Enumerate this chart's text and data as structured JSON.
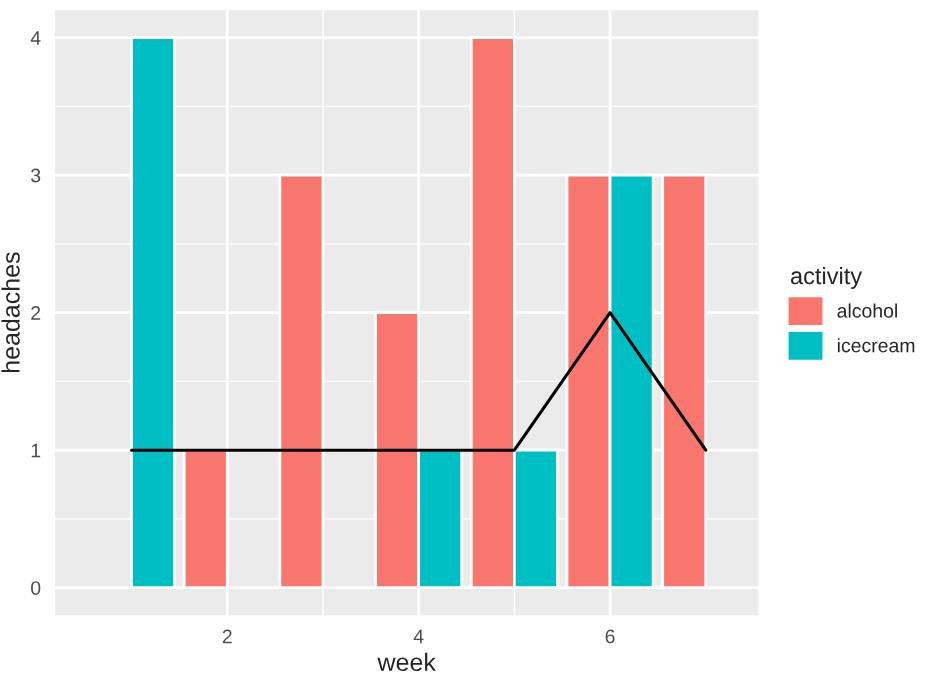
{
  "chart_data": {
    "type": "bar",
    "xlabel": "week",
    "ylabel": "headaches",
    "legend_title": "activity",
    "legend": "right",
    "grid": true,
    "x": [
      1,
      2,
      3,
      4,
      5,
      6,
      7
    ],
    "xlim": [
      0.2,
      7.55
    ],
    "xticks": [
      2,
      4,
      6
    ],
    "ylim": [
      -0.2,
      4.2
    ],
    "yticks": [
      0,
      1,
      2,
      3,
      4
    ],
    "series": [
      {
        "name": "alcohol",
        "color": "#f8766d",
        "values": [
          null,
          1,
          3,
          2,
          4,
          3,
          3
        ]
      },
      {
        "name": "icecream",
        "color": "#00bfc4",
        "values": [
          4,
          null,
          null,
          1,
          1,
          3,
          null
        ]
      },
      {
        "type": "line",
        "color": "#000000",
        "values": [
          1,
          1,
          1,
          1,
          1,
          2,
          1
        ]
      }
    ]
  }
}
